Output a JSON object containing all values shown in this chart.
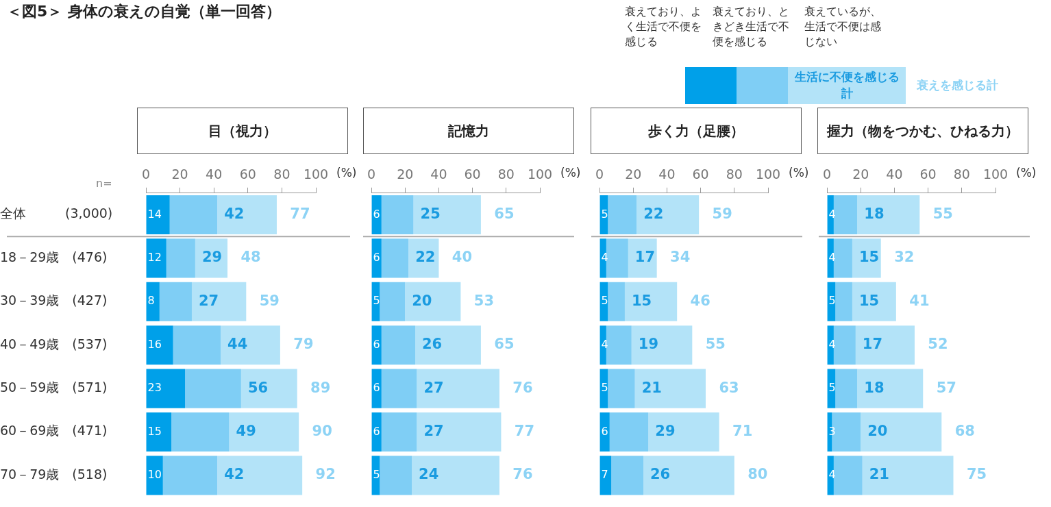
{
  "chart_data": [
    {
      "type": "bar",
      "orientation": "horizontal",
      "stacked": true,
      "title": "目（視力）",
      "xlabel": "(%)",
      "legend": "top right",
      "xlim": [
        0,
        100
      ],
      "xticks": [
        0,
        20,
        40,
        60,
        80,
        100
      ],
      "annotations": [
        "＜図5＞ 身体の衰えの自覚（単一回答）",
        "n=",
        "生活に不便を感じる計",
        "衰えを感じる計",
        {
          "text": "42",
          "x": 42
        },
        {
          "text": "29",
          "x": 29
        },
        {
          "text": "27",
          "x": 27
        },
        {
          "text": "44",
          "x": 44
        },
        {
          "text": "56",
          "x": 56
        },
        {
          "text": "49",
          "x": 49
        },
        {
          "text": "42",
          "x": 42
        }
      ],
      "totals": [
        "77",
        "48",
        "59",
        "79",
        "89",
        "90",
        "92"
      ],
      "categories": [
        "全体　　　(3,000)",
        "18－29歳　(476)",
        "30－39歳　(427)",
        "40－49歳　(537)",
        "50－59歳　(571)",
        "60－69歳　(471)",
        "70－79歳　(518)"
      ],
      "series": [
        {
          "name": "衰えており、よく生活で不便を感じる",
          "color": "#00a0e9",
          "values": [
            14,
            12,
            8,
            16,
            23,
            15,
            10
          ],
          "value_labels": [
            "14",
            "12",
            "8",
            "16",
            "23",
            "15",
            "10"
          ]
        },
        {
          "name": "衰えており、ときどき生活で不便を感じる",
          "color": "#7fcef5",
          "values": [
            28,
            17,
            19,
            28,
            33,
            34,
            32
          ]
        },
        {
          "name": "衰えているが、生活で不便は感じない",
          "color": "#b3e3f8",
          "values": [
            35,
            19,
            32,
            35,
            33,
            41,
            50
          ]
        }
      ]
    },
    {
      "type": "bar",
      "orientation": "horizontal",
      "stacked": true,
      "title": "記憶力",
      "xlabel": "(%)",
      "xlim": [
        0,
        100
      ],
      "xticks": [
        0,
        20,
        40,
        60,
        80,
        100
      ],
      "annotations": [
        {
          "text": "25",
          "x": 25
        },
        {
          "text": "22",
          "x": 22
        },
        {
          "text": "20",
          "x": 20
        },
        {
          "text": "26",
          "x": 26
        },
        {
          "text": "27",
          "x": 27
        },
        {
          "text": "27",
          "x": 27
        },
        {
          "text": "24",
          "x": 24
        }
      ],
      "totals": [
        "65",
        "40",
        "53",
        "65",
        "76",
        "77",
        "76"
      ],
      "categories": [
        null,
        null,
        null,
        null,
        null,
        null,
        null
      ],
      "series": [
        {
          "color": "#00a0e9",
          "values": [
            6,
            6,
            5,
            6,
            6,
            6,
            5
          ],
          "value_labels": [
            "6",
            "6",
            "5",
            "6",
            "6",
            "6",
            "5"
          ]
        },
        {
          "color": "#7fcef5",
          "values": [
            19,
            16,
            15,
            20,
            21,
            21,
            19
          ]
        },
        {
          "color": "#b3e3f8",
          "values": [
            40,
            18,
            33,
            39,
            49,
            50,
            52
          ]
        }
      ]
    },
    {
      "type": "bar",
      "orientation": "horizontal",
      "stacked": true,
      "title": "歩く力（足腰）",
      "xlabel": "(%)",
      "xlim": [
        0,
        100
      ],
      "xticks": [
        0,
        20,
        40,
        60,
        80,
        100
      ],
      "annotations": [
        {
          "text": "22",
          "x": 22
        },
        {
          "text": "17",
          "x": 17
        },
        {
          "text": "15",
          "x": 15
        },
        {
          "text": "19",
          "x": 19
        },
        {
          "text": "21",
          "x": 21
        },
        {
          "text": "29",
          "x": 29
        },
        {
          "text": "26",
          "x": 26
        }
      ],
      "totals": [
        "59",
        "34",
        "46",
        "55",
        "63",
        "71",
        "80"
      ],
      "categories": [
        null,
        null,
        null,
        null,
        null,
        null,
        null
      ],
      "series": [
        {
          "color": "#00a0e9",
          "values": [
            5,
            4,
            5,
            4,
            5,
            6,
            7
          ],
          "value_labels": [
            "5",
            "4",
            "5",
            "4",
            "5",
            "6",
            "7"
          ]
        },
        {
          "color": "#7fcef5",
          "values": [
            17,
            13,
            10,
            15,
            16,
            23,
            19
          ]
        },
        {
          "color": "#b3e3f8",
          "values": [
            37,
            17,
            31,
            36,
            42,
            42,
            54
          ]
        }
      ]
    },
    {
      "type": "bar",
      "orientation": "horizontal",
      "stacked": true,
      "title": "握力",
      "subtitle": "（物をつかむ、ひねる力）",
      "xlabel": "(%)",
      "xlim": [
        0,
        100
      ],
      "xticks": [
        0,
        20,
        40,
        60,
        80,
        100
      ],
      "annotations": [
        {
          "text": "18",
          "x": 18
        },
        {
          "text": "15",
          "x": 15
        },
        {
          "text": "15",
          "x": 15
        },
        {
          "text": "17",
          "x": 17
        },
        {
          "text": "18",
          "x": 18
        },
        {
          "text": "20",
          "x": 20
        },
        {
          "text": "21",
          "x": 21
        }
      ],
      "totals": [
        "55",
        "32",
        "41",
        "52",
        "57",
        "68",
        "75"
      ],
      "categories": [
        null,
        null,
        null,
        null,
        null,
        null,
        null
      ],
      "series": [
        {
          "color": "#00a0e9",
          "values": [
            4,
            4,
            5,
            4,
            5,
            3,
            4
          ],
          "value_labels": [
            "4",
            "4",
            "5",
            "4",
            "5",
            "3",
            "4"
          ]
        },
        {
          "color": "#7fcef5",
          "values": [
            14,
            11,
            10,
            13,
            13,
            17,
            17
          ]
        },
        {
          "color": "#b3e3f8",
          "values": [
            37,
            17,
            26,
            35,
            39,
            48,
            54
          ]
        }
      ]
    }
  ]
}
